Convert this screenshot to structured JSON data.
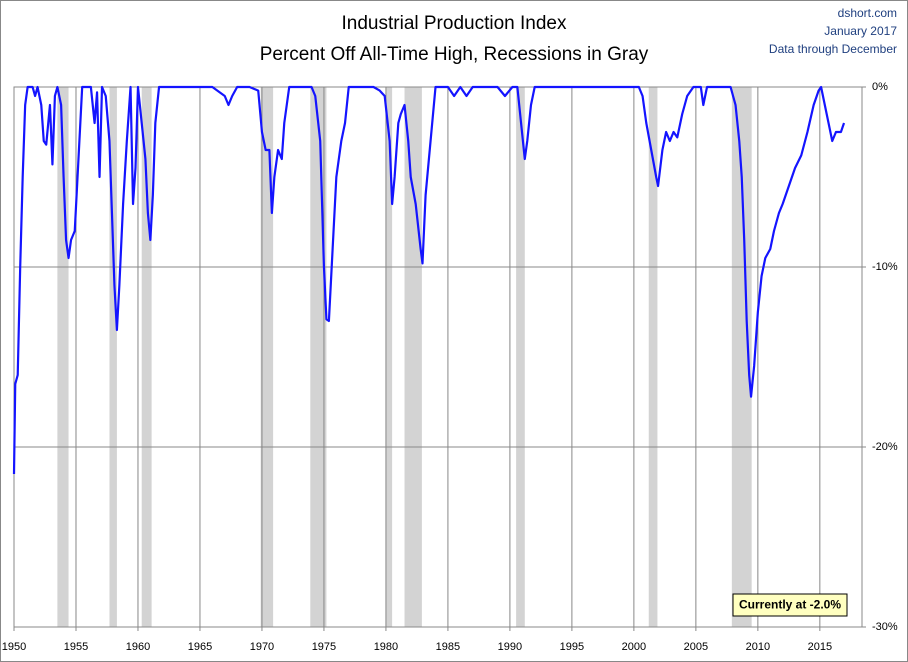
{
  "chart_data": {
    "type": "line",
    "title": "Industrial Production Index",
    "subtitle": "Percent Off All-Time High, Recessions in Gray",
    "source": "dshort.com",
    "date": "January 2017",
    "note": "Data through December",
    "annotation": "Currently at -2.0%",
    "xlim": [
      1950,
      2018.4
    ],
    "xticks": [
      1950,
      1955,
      1960,
      1965,
      1970,
      1975,
      1980,
      1985,
      1990,
      1995,
      2000,
      2005,
      2010,
      2015
    ],
    "ylim": [
      -30,
      0
    ],
    "yticks": [
      {
        "value": 0,
        "label": "0%"
      },
      {
        "value": -10,
        "label": "-10%"
      },
      {
        "value": -20,
        "label": "-20%"
      },
      {
        "value": -30,
        "label": "-30%"
      }
    ],
    "grid": true,
    "recession_color": "#d3d3d3",
    "recessions": [
      [
        1953.5,
        1954.4
      ],
      [
        1957.7,
        1958.3
      ],
      [
        1960.3,
        1961.1
      ],
      [
        1969.9,
        1970.9
      ],
      [
        1973.9,
        1975.2
      ],
      [
        1980.0,
        1980.5
      ],
      [
        1981.5,
        1982.9
      ],
      [
        1990.5,
        1991.2
      ],
      [
        2001.2,
        2001.9
      ],
      [
        2007.9,
        2009.5
      ]
    ],
    "series": [
      {
        "color": "#1414ff",
        "x": [
          1950.0,
          1950.1,
          1950.3,
          1950.5,
          1950.7,
          1950.9,
          1951.1,
          1951.5,
          1951.7,
          1951.9,
          1952.2,
          1952.4,
          1952.6,
          1952.9,
          1953.1,
          1953.3,
          1953.5,
          1953.8,
          1954.0,
          1954.2,
          1954.4,
          1954.6,
          1954.9,
          1955.2,
          1955.5,
          1955.9,
          1956.2,
          1956.5,
          1956.7,
          1956.9,
          1957.1,
          1957.4,
          1957.7,
          1957.9,
          1958.1,
          1958.3,
          1958.5,
          1958.8,
          1959.1,
          1959.4,
          1959.6,
          1959.8,
          1960.0,
          1960.3,
          1960.6,
          1960.8,
          1961.0,
          1961.2,
          1961.4,
          1961.7,
          1962,
          1963,
          1964,
          1965,
          1966,
          1967.0,
          1967.3,
          1967.6,
          1968,
          1969,
          1969.7,
          1970.0,
          1970.3,
          1970.6,
          1970.8,
          1971.0,
          1971.3,
          1971.6,
          1971.8,
          1972.2,
          1973,
          1974,
          1974.3,
          1974.7,
          1975.0,
          1975.2,
          1975.4,
          1975.7,
          1976.0,
          1976.4,
          1976.7,
          1977.0,
          1978,
          1979,
          1979.5,
          1979.9,
          1980.3,
          1980.5,
          1980.7,
          1981.0,
          1981.2,
          1981.5,
          1981.8,
          1982.0,
          1982.4,
          1982.8,
          1982.95,
          1983.2,
          1983.6,
          1984.0,
          1985,
          1985.5,
          1986,
          1986.5,
          1987,
          1988,
          1989,
          1989.6,
          1990.2,
          1990.6,
          1990.9,
          1991.2,
          1991.4,
          1991.7,
          1992.0,
          1993,
          1995,
          1996,
          1998,
          1999,
          2000.4,
          2000.7,
          2001.0,
          2001.4,
          2001.8,
          2001.95,
          2002.3,
          2002.6,
          2002.9,
          2003.2,
          2003.5,
          2003.9,
          2004.3,
          2004.8,
          2005.4,
          2005.6,
          2005.9,
          2006,
          2007,
          2007.8,
          2008.2,
          2008.5,
          2008.7,
          2008.9,
          2009.1,
          2009.3,
          2009.45,
          2009.7,
          2010.0,
          2010.3,
          2010.6,
          2011.0,
          2011.3,
          2011.7,
          2012.0,
          2012.5,
          2013.0,
          2013.5,
          2014.0,
          2014.5,
          2014.9,
          2015.1,
          2015.4,
          2015.7,
          2016.0,
          2016.3,
          2016.5,
          2016.7,
          2016.95
        ],
        "values": [
          -21.5,
          -16.5,
          -16,
          -10,
          -5,
          -1,
          0,
          0,
          -0.5,
          0,
          -1,
          -3,
          -3.2,
          -1,
          -4.3,
          -0.5,
          0,
          -1,
          -5,
          -8.5,
          -9.5,
          -8.5,
          -8,
          -4,
          0,
          0,
          0,
          -2,
          -0.3,
          -5,
          0,
          -0.5,
          -3,
          -7,
          -11,
          -13.5,
          -11,
          -6.5,
          -3,
          0,
          -6.5,
          -4.5,
          0,
          -2,
          -4,
          -7,
          -8.5,
          -6,
          -2,
          0,
          0,
          0,
          0,
          0,
          0,
          -0.5,
          -1,
          -0.5,
          0,
          0,
          -0.2,
          -2.5,
          -3.5,
          -3.5,
          -7,
          -5,
          -3.5,
          -4,
          -2,
          0,
          0,
          0,
          -0.5,
          -3,
          -10,
          -12.9,
          -13,
          -9,
          -5,
          -3,
          -2,
          0,
          0,
          0,
          -0.2,
          -0.5,
          -3,
          -6.5,
          -5,
          -2,
          -1.5,
          -1,
          -3,
          -5,
          -6.5,
          -9,
          -9.8,
          -6,
          -3,
          0,
          0,
          -0.5,
          0,
          -0.5,
          0,
          0,
          0,
          -0.5,
          0,
          0,
          -2,
          -4,
          -3,
          -1,
          0,
          0,
          0,
          0,
          0,
          0,
          0,
          -0.5,
          -2,
          -3.5,
          -5,
          -5.5,
          -3.5,
          -2.5,
          -3,
          -2.5,
          -2.8,
          -1.5,
          -0.5,
          0,
          0,
          -1,
          0,
          0,
          0,
          0,
          -1,
          -3,
          -5,
          -8.5,
          -13,
          -16,
          -17.2,
          -15.5,
          -12.5,
          -10.5,
          -9.5,
          -9,
          -8,
          -7,
          -6.5,
          -5.5,
          -4.5,
          -3.8,
          -2.5,
          -1,
          -0.2,
          0,
          -1,
          -2,
          -3,
          -2.5,
          -2.5,
          -2.5,
          -2.0
        ]
      }
    ]
  }
}
